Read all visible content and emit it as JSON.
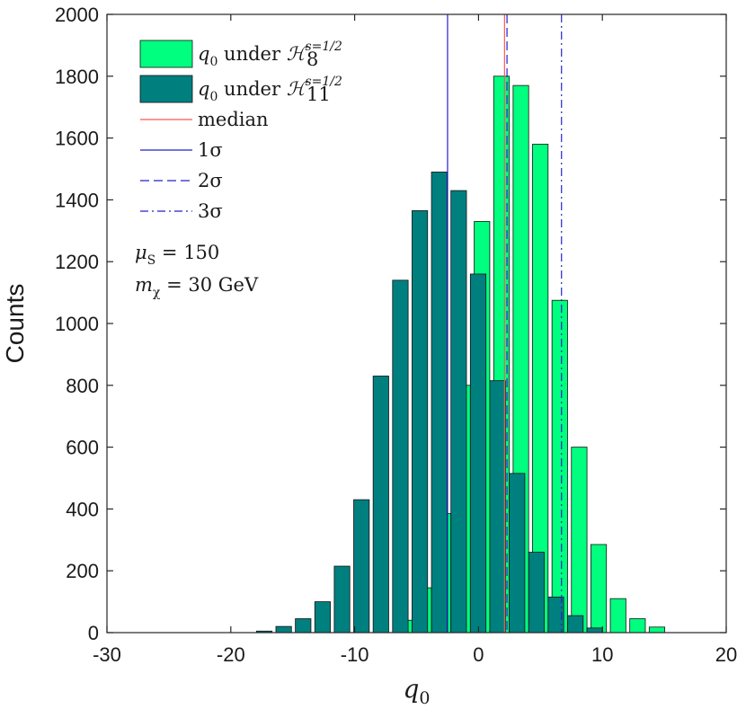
{
  "chart_data": {
    "type": "bar",
    "ylabel": "Counts",
    "xlabel": "q_0",
    "xlim": [
      -30,
      20
    ],
    "ylim": [
      0,
      2000
    ],
    "xticks": [
      -30,
      -20,
      -10,
      0,
      10,
      20
    ],
    "yticks": [
      0,
      200,
      400,
      600,
      800,
      1000,
      1200,
      1400,
      1600,
      1800,
      2000
    ],
    "bin_width": 1.57,
    "series": [
      {
        "name": "q_0 under H_8^{s=1/2}",
        "legend_text": "q0 under ",
        "legend_symbol": "ℋ",
        "legend_sub": "8",
        "legend_sup": "s=1/2",
        "color": "#00ff7f",
        "x": [
          -6.0,
          -4.43,
          -2.86,
          -1.29,
          0.28,
          1.85,
          3.42,
          4.99,
          6.56,
          8.13,
          9.7,
          11.27,
          12.84,
          14.41
        ],
        "values": [
          40,
          145,
          385,
          800,
          1330,
          1800,
          1770,
          1580,
          1075,
          600,
          285,
          110,
          45,
          18
        ]
      },
      {
        "name": "q_0 under H_11^{s=1/2}",
        "legend_text": "q0 under ",
        "legend_symbol": "ℋ",
        "legend_sub": "11",
        "legend_sup": "s=1/2",
        "color": "#007f7f",
        "x": [
          -17.3,
          -15.73,
          -14.16,
          -12.59,
          -11.02,
          -9.45,
          -7.88,
          -6.31,
          -4.74,
          -3.17,
          -1.6,
          -0.03,
          1.54,
          3.11,
          4.68,
          6.25,
          7.82,
          9.39
        ],
        "values": [
          5,
          20,
          45,
          100,
          215,
          430,
          830,
          1140,
          1365,
          1490,
          1430,
          1160,
          815,
          515,
          260,
          115,
          55,
          15
        ]
      }
    ],
    "vlines": [
      {
        "name": "median",
        "x": 2.1,
        "color": "#ff5555",
        "style": "solid"
      },
      {
        "name": "1σ",
        "x": -2.5,
        "color": "#2222cc",
        "style": "solid"
      },
      {
        "name": "2σ",
        "x": 2.3,
        "color": "#2222cc",
        "style": "dashed"
      },
      {
        "name": "3σ",
        "x": 6.7,
        "color": "#2222cc",
        "style": "dashdot"
      }
    ],
    "legend_position": "top-left",
    "annotations": [
      {
        "id": "mu",
        "symbol": "μ",
        "sub": "S",
        "text": " = 150"
      },
      {
        "id": "m",
        "symbol": "m",
        "sub": "χ",
        "text": " = 30 GeV"
      }
    ]
  }
}
